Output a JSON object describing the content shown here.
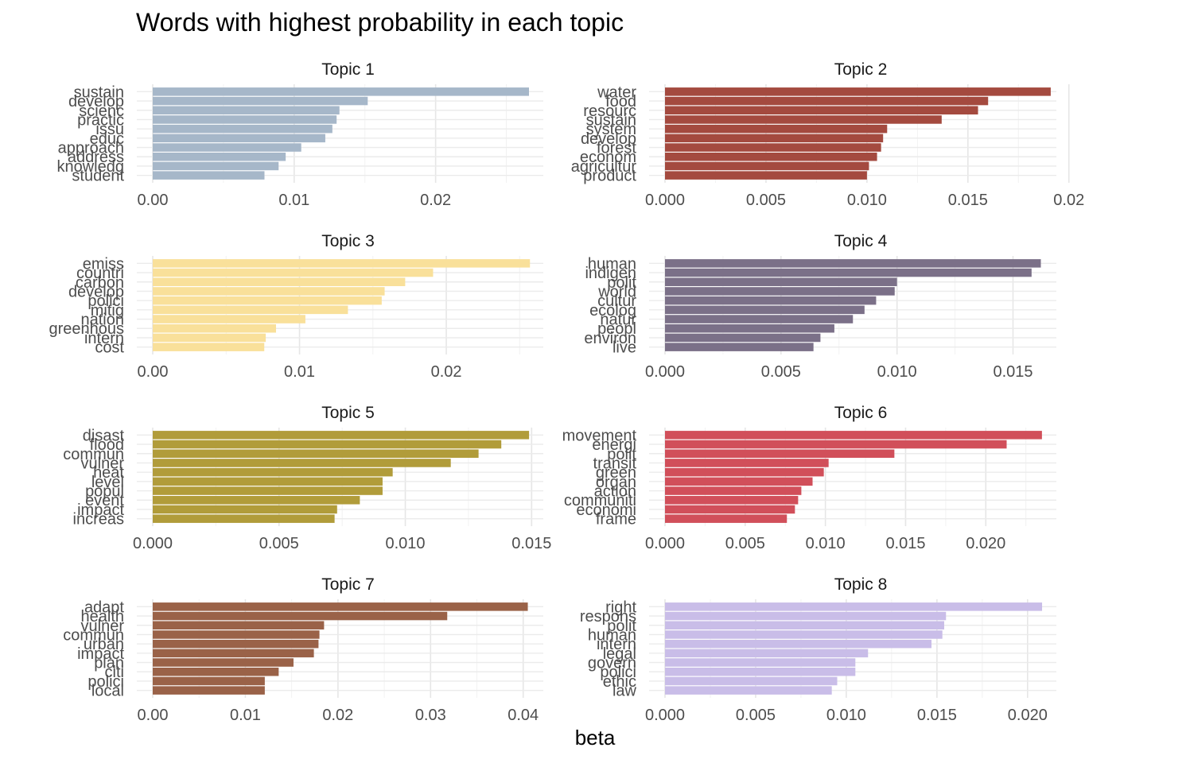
{
  "title": "Words with highest probability in each topic",
  "xlabel": "beta",
  "chart_data": [
    {
      "type": "bar",
      "orientation": "horizontal",
      "facet_title": "Topic 1",
      "color": "#A6B7C9",
      "xlim": [
        0,
        0.0275
      ],
      "xticks": [
        0,
        0.01,
        0.02
      ],
      "xtick_labels": [
        "0.00",
        "0.01",
        "0.02"
      ],
      "categories": [
        "sustain",
        "develop",
        "scienc",
        "practic",
        "issu",
        "educ",
        "approach",
        "address",
        "knowledg",
        "student"
      ],
      "values": [
        0.0266,
        0.0152,
        0.0132,
        0.013,
        0.0127,
        0.0122,
        0.0105,
        0.0094,
        0.0089,
        0.0079
      ]
    },
    {
      "type": "bar",
      "orientation": "horizontal",
      "facet_title": "Topic 2",
      "color": "#A44A3F",
      "xlim": [
        0,
        0.0193
      ],
      "xticks": [
        0,
        0.005,
        0.01,
        0.015,
        0.02
      ],
      "xtick_labels": [
        "0.000",
        "0.005",
        "0.010",
        "0.015",
        "0.02"
      ],
      "categories": [
        "water",
        "food",
        "resourc",
        "sustain",
        "system",
        "develop",
        "forest",
        "econom",
        "agricultur",
        "product"
      ],
      "values": [
        0.0191,
        0.016,
        0.0155,
        0.0137,
        0.011,
        0.0108,
        0.0107,
        0.0105,
        0.0101,
        0.01
      ]
    },
    {
      "type": "bar",
      "orientation": "horizontal",
      "facet_title": "Topic 3",
      "color": "#F9E09A",
      "xlim": [
        0,
        0.0265
      ],
      "xticks": [
        0,
        0.01,
        0.02
      ],
      "xtick_labels": [
        "0.00",
        "0.01",
        "0.02"
      ],
      "categories": [
        "emiss",
        "countri",
        "carbon",
        "develop",
        "polici",
        "mitig",
        "nation",
        "greenhous",
        "intern",
        "cost"
      ],
      "values": [
        0.0257,
        0.0191,
        0.0172,
        0.0158,
        0.0156,
        0.0133,
        0.0104,
        0.0084,
        0.0077,
        0.0076
      ]
    },
    {
      "type": "bar",
      "orientation": "horizontal",
      "facet_title": "Topic 4",
      "color": "#7B7088",
      "xlim": [
        0,
        0.0168
      ],
      "xticks": [
        0,
        0.005,
        0.01,
        0.015
      ],
      "xtick_labels": [
        "0.000",
        "0.005",
        "0.010",
        "0.015"
      ],
      "categories": [
        "human",
        "indigen",
        "polit",
        "world",
        "cultur",
        "ecolog",
        "natur",
        "peopl",
        "environ",
        "live"
      ],
      "values": [
        0.0162,
        0.0158,
        0.01,
        0.0099,
        0.0091,
        0.0086,
        0.0081,
        0.0073,
        0.0067,
        0.0064
      ]
    },
    {
      "type": "bar",
      "orientation": "horizontal",
      "facet_title": "Topic 5",
      "color": "#B19C3A",
      "xlim": [
        0,
        0.0154
      ],
      "xticks": [
        0,
        0.005,
        0.01,
        0.015
      ],
      "xtick_labels": [
        "0.000",
        "0.005",
        "0.010",
        "0.015"
      ],
      "categories": [
        "disast",
        "flood",
        "commun",
        "vulner",
        "heat",
        "level",
        "popul",
        "event",
        "impact",
        "increas"
      ],
      "values": [
        0.0149,
        0.0138,
        0.0129,
        0.0118,
        0.0095,
        0.0091,
        0.0091,
        0.0082,
        0.0073,
        0.0072
      ]
    },
    {
      "type": "bar",
      "orientation": "horizontal",
      "facet_title": "Topic 6",
      "color": "#D14F5A",
      "xlim": [
        0,
        0.0243
      ],
      "xticks": [
        0,
        0.005,
        0.01,
        0.015,
        0.02
      ],
      "xtick_labels": [
        "0.000",
        "0.005",
        "0.010",
        "0.015",
        "0.020"
      ],
      "categories": [
        "movement",
        "energi",
        "polit",
        "transit",
        "green",
        "organ",
        "action",
        "communiti",
        "economi",
        "frame"
      ],
      "values": [
        0.0235,
        0.0213,
        0.0143,
        0.0102,
        0.0099,
        0.0092,
        0.0085,
        0.0083,
        0.0081,
        0.0076
      ]
    },
    {
      "type": "bar",
      "orientation": "horizontal",
      "facet_title": "Topic 7",
      "color": "#9A6248",
      "xlim": [
        0,
        0.042
      ],
      "xticks": [
        0,
        0.01,
        0.02,
        0.03,
        0.04
      ],
      "xtick_labels": [
        "0.00",
        "0.01",
        "0.02",
        "0.03",
        "0.04"
      ],
      "categories": [
        "adapt",
        "health",
        "vulner",
        "commun",
        "urban",
        "impact",
        "plan",
        "citi",
        "polici",
        "local"
      ],
      "values": [
        0.0405,
        0.0318,
        0.0185,
        0.018,
        0.0179,
        0.0174,
        0.0152,
        0.0136,
        0.0121,
        0.0121
      ]
    },
    {
      "type": "bar",
      "orientation": "horizontal",
      "facet_title": "Topic 8",
      "color": "#C9BDE8",
      "xlim": [
        0,
        0.0215
      ],
      "xticks": [
        0,
        0.005,
        0.01,
        0.015,
        0.02
      ],
      "xtick_labels": [
        "0.000",
        "0.005",
        "0.010",
        "0.015",
        "0.020"
      ],
      "categories": [
        "right",
        "respons",
        "polit",
        "human",
        "intern",
        "legal",
        "govern",
        "polici",
        "ethic",
        "law"
      ],
      "values": [
        0.0208,
        0.0155,
        0.0154,
        0.0153,
        0.0147,
        0.0112,
        0.0105,
        0.0105,
        0.0095,
        0.0092
      ]
    }
  ]
}
